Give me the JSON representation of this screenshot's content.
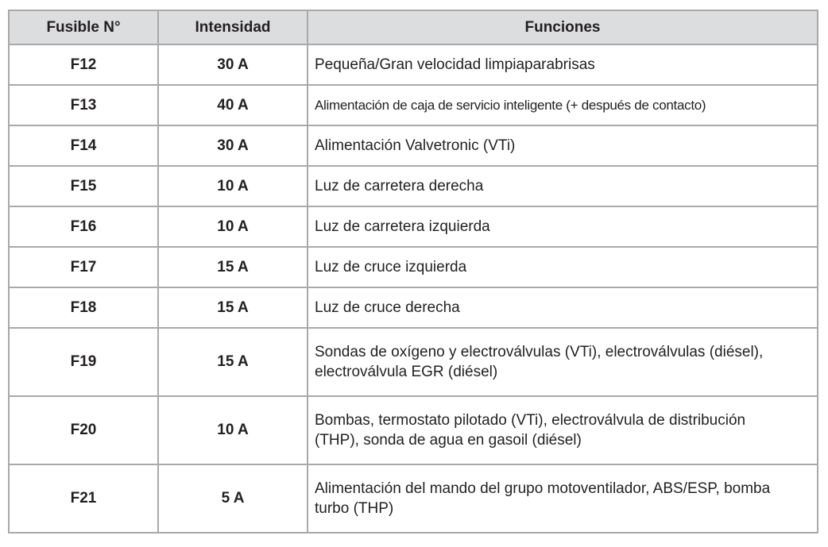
{
  "headers": [
    "Fusible N°",
    "Intensidad",
    "Funciones"
  ],
  "rows": [
    {
      "fuse": "F12",
      "amps": "30 A",
      "function": "Pequeña/Gran velocidad limpiaparabrisas"
    },
    {
      "fuse": "F13",
      "amps": "40 A",
      "function": "Alimentación de caja de servicio inteligente (+ después de contacto)"
    },
    {
      "fuse": "F14",
      "amps": "30 A",
      "function": "Alimentación Valvetronic (VTi)"
    },
    {
      "fuse": "F15",
      "amps": "10 A",
      "function": "Luz de carretera derecha"
    },
    {
      "fuse": "F16",
      "amps": "10 A",
      "function": "Luz de carretera izquierda"
    },
    {
      "fuse": "F17",
      "amps": "15 A",
      "function": "Luz de cruce izquierda"
    },
    {
      "fuse": "F18",
      "amps": "15 A",
      "function": "Luz de cruce derecha"
    },
    {
      "fuse": "F19",
      "amps": "15 A",
      "function": "Sondas de oxígeno y electroválvulas (VTi), electroválvulas (diésel), electroválvula EGR (diésel)"
    },
    {
      "fuse": "F20",
      "amps": "10 A",
      "function": "Bombas, termostato pilotado (VTi), electroválvula de distribución (THP), sonda de agua en gasoil (diésel)"
    },
    {
      "fuse": "F21",
      "amps": "5 A",
      "function": "Alimentación del mando del grupo motoventilador, ABS/ESP, bomba turbo (THP)"
    }
  ]
}
